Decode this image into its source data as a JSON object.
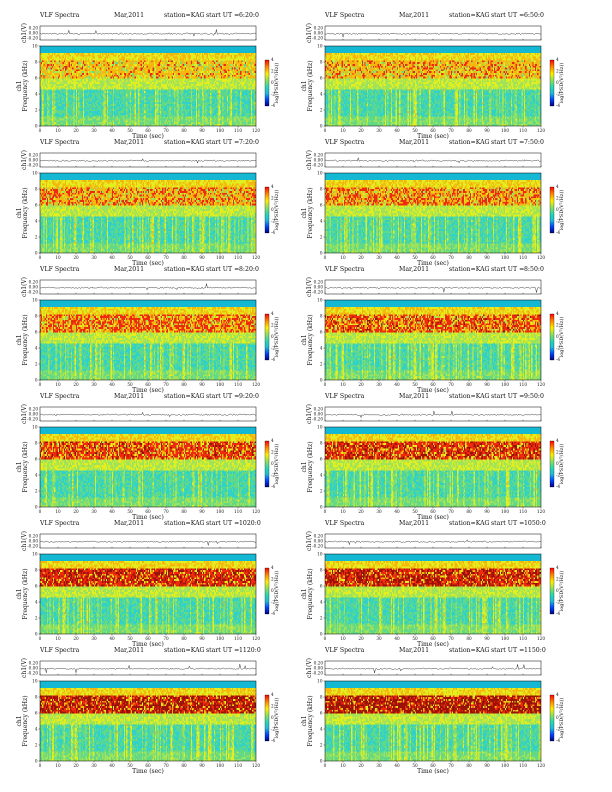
{
  "header": {
    "title": "VLF Spectra",
    "month": "Mar,2011",
    "station": "station=KAG",
    "start_prefix": "start UT ="
  },
  "axes": {
    "x_label": "Time (sec)",
    "y_label_top": "ch1(V)",
    "y_label_spec_1": "ch1",
    "y_label_spec_2": "Frequency (kHz)",
    "colorbar_label": "log(PSD(V²/Hz))"
  },
  "chart_data": [
    {
      "panel": 1,
      "type": "heatmap",
      "title": "VLF Spectra",
      "date": "Mar,2011",
      "station": "KAG",
      "start_ut": "6:20:0",
      "xlim": [
        0,
        120
      ],
      "xticks": [
        "0",
        "10",
        "20",
        "30",
        "40",
        "50",
        "60",
        "70",
        "80",
        "90",
        "100",
        "110",
        "120"
      ],
      "ylim": [
        0,
        10
      ],
      "yticks": [
        "0",
        "2",
        "4",
        "6",
        "8",
        "10"
      ],
      "waveform_yticks": [
        "0.20",
        "0.00",
        "-0.20"
      ]
    },
    {
      "panel": 2,
      "type": "heatmap",
      "title": "VLF Spectra",
      "date": "Mar,2011",
      "station": "KAG",
      "start_ut": "6:50:0",
      "xlim": [
        0,
        120
      ],
      "xticks": [
        "0",
        "10",
        "20",
        "30",
        "40",
        "50",
        "60",
        "70",
        "80",
        "90",
        "100",
        "110",
        "120"
      ],
      "ylim": [
        0,
        10
      ],
      "yticks": [
        "0",
        "2",
        "4",
        "6",
        "8",
        "10"
      ],
      "waveform_yticks": [
        "0.20",
        "0.00",
        "-0.20"
      ]
    },
    {
      "panel": 3,
      "type": "heatmap",
      "title": "VLF Spectra",
      "date": "Mar,2011",
      "station": "KAG",
      "start_ut": "7:20:0",
      "xlim": [
        0,
        120
      ],
      "xticks": [
        "0",
        "10",
        "20",
        "30",
        "40",
        "50",
        "60",
        "70",
        "80",
        "90",
        "100",
        "110",
        "120"
      ],
      "ylim": [
        0,
        10
      ],
      "yticks": [
        "0",
        "2",
        "4",
        "6",
        "8",
        "10"
      ],
      "waveform_yticks": [
        "0.20",
        "0.00",
        "-0.20"
      ]
    },
    {
      "panel": 4,
      "type": "heatmap",
      "title": "VLF Spectra",
      "date": "Mar,2011",
      "station": "KAG",
      "start_ut": "7:50:0",
      "xlim": [
        0,
        120
      ],
      "xticks": [
        "0",
        "10",
        "20",
        "30",
        "40",
        "50",
        "60",
        "70",
        "80",
        "90",
        "100",
        "110",
        "120"
      ],
      "ylim": [
        0,
        10
      ],
      "yticks": [
        "0",
        "2",
        "4",
        "6",
        "8",
        "10"
      ],
      "waveform_yticks": [
        "0.20",
        "0.00",
        "-0.20"
      ]
    },
    {
      "panel": 5,
      "type": "heatmap",
      "title": "VLF Spectra",
      "date": "Mar,2011",
      "station": "KAG",
      "start_ut": "8:20:0",
      "xlim": [
        0,
        120
      ],
      "xticks": [
        "0",
        "10",
        "20",
        "30",
        "40",
        "50",
        "60",
        "70",
        "80",
        "90",
        "100",
        "110",
        "120"
      ],
      "ylim": [
        0,
        10
      ],
      "yticks": [
        "0",
        "2",
        "4",
        "6",
        "8",
        "10"
      ],
      "waveform_yticks": [
        "0.20",
        "0.00",
        "-0.20"
      ]
    },
    {
      "panel": 6,
      "type": "heatmap",
      "title": "VLF Spectra",
      "date": "Mar,2011",
      "station": "KAG",
      "start_ut": "8:50:0",
      "xlim": [
        0,
        120
      ],
      "xticks": [
        "0",
        "10",
        "20",
        "30",
        "40",
        "50",
        "60",
        "70",
        "80",
        "90",
        "100",
        "110",
        "120"
      ],
      "ylim": [
        0,
        10
      ],
      "yticks": [
        "0",
        "2",
        "4",
        "6",
        "8",
        "10"
      ],
      "waveform_yticks": [
        "0.20",
        "0.00",
        "-0.20"
      ]
    },
    {
      "panel": 7,
      "type": "heatmap",
      "title": "VLF Spectra",
      "date": "Mar,2011",
      "station": "KAG",
      "start_ut": "9:20:0",
      "xlim": [
        0,
        120
      ],
      "xticks": [
        "0",
        "10",
        "20",
        "30",
        "40",
        "50",
        "60",
        "70",
        "80",
        "90",
        "100",
        "110",
        "120"
      ],
      "ylim": [
        0,
        10
      ],
      "yticks": [
        "0",
        "2",
        "4",
        "6",
        "8",
        "10"
      ],
      "waveform_yticks": [
        "0.20",
        "0.00",
        "-0.20"
      ]
    },
    {
      "panel": 8,
      "type": "heatmap",
      "title": "VLF Spectra",
      "date": "Mar,2011",
      "station": "KAG",
      "start_ut": "9:50:0",
      "xlim": [
        0,
        120
      ],
      "xticks": [
        "0",
        "10",
        "20",
        "30",
        "40",
        "50",
        "60",
        "70",
        "80",
        "90",
        "100",
        "110",
        "120"
      ],
      "ylim": [
        0,
        10
      ],
      "yticks": [
        "0",
        "2",
        "4",
        "6",
        "8",
        "10"
      ],
      "waveform_yticks": [
        "0.20",
        "0.00",
        "-0.20"
      ]
    },
    {
      "panel": 9,
      "type": "heatmap",
      "title": "VLF Spectra",
      "date": "Mar,2011",
      "station": "KAG",
      "start_ut": "1020:0",
      "xlim": [
        0,
        120
      ],
      "xticks": [
        "0",
        "10",
        "20",
        "30",
        "40",
        "50",
        "60",
        "70",
        "80",
        "90",
        "100",
        "110",
        "120"
      ],
      "ylim": [
        0,
        10
      ],
      "yticks": [
        "0",
        "2",
        "4",
        "6",
        "8",
        "10"
      ],
      "waveform_yticks": [
        "0.20",
        "0.00",
        "-0.20"
      ]
    },
    {
      "panel": 10,
      "type": "heatmap",
      "title": "VLF Spectra",
      "date": "Mar,2011",
      "station": "KAG",
      "start_ut": "1050:0",
      "xlim": [
        0,
        120
      ],
      "xticks": [
        "0",
        "10",
        "20",
        "30",
        "40",
        "50",
        "60",
        "70",
        "80",
        "90",
        "100",
        "110",
        "120"
      ],
      "ylim": [
        0,
        10
      ],
      "yticks": [
        "0",
        "2",
        "4",
        "6",
        "8",
        "10"
      ],
      "waveform_yticks": [
        "0.20",
        "0.00",
        "-0.20"
      ]
    },
    {
      "panel": 11,
      "type": "heatmap",
      "title": "VLF Spectra",
      "date": "Mar,2011",
      "station": "KAG",
      "start_ut": "1120:0",
      "xlim": [
        0,
        120
      ],
      "xticks": [
        "0",
        "10",
        "20",
        "30",
        "40",
        "50",
        "60",
        "70",
        "80",
        "90",
        "100",
        "110",
        "120"
      ],
      "ylim": [
        0,
        10
      ],
      "yticks": [
        "0",
        "2",
        "4",
        "6",
        "8",
        "10"
      ],
      "waveform_yticks": [
        "0.20",
        "0.00",
        "-0.20"
      ]
    },
    {
      "panel": 12,
      "type": "heatmap",
      "title": "VLF Spectra",
      "date": "Mar,2011",
      "station": "KAG",
      "start_ut": "1150:0",
      "xlim": [
        0,
        120
      ],
      "xticks": [
        "0",
        "10",
        "20",
        "30",
        "40",
        "50",
        "60",
        "70",
        "80",
        "90",
        "100",
        "110",
        "120"
      ],
      "ylim": [
        0,
        10
      ],
      "yticks": [
        "0",
        "2",
        "4",
        "6",
        "8",
        "10"
      ],
      "waveform_yticks": [
        "0.20",
        "0.00",
        "-0.20"
      ]
    }
  ],
  "colorbar": {
    "ticks": [
      "4",
      "2",
      "0",
      "-2",
      "-4"
    ],
    "colors": [
      "#ff0000",
      "#ff8800",
      "#ffee00",
      "#88e060",
      "#22d6b6",
      "#22bcd8",
      "#0044ff",
      "#000080"
    ]
  },
  "heatmap_palette": [
    "#14b8d2",
    "#2fd1c8",
    "#62d986",
    "#9fe35a",
    "#e3ee1e",
    "#f6b610",
    "#ee2a0e",
    "#9a1208"
  ]
}
